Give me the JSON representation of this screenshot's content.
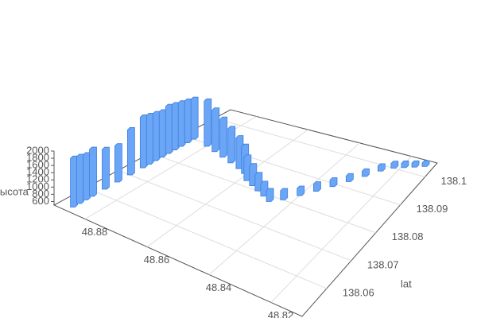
{
  "chart_data": {
    "type": "bar3D",
    "color": "#6aa6f5",
    "edge_color": "#3b7de0",
    "y_axis_name": "lat",
    "z_axis_name": "высота",
    "xlim": [
      48.81,
      48.89
    ],
    "ylim": [
      138.05,
      138.105
    ],
    "zlim": [
      500,
      2000
    ],
    "xticks": [
      48.82,
      48.84,
      48.86,
      48.88
    ],
    "yticks": [
      138.06,
      138.07,
      138.08,
      138.09,
      138.1
    ],
    "zticks": [
      600,
      800,
      1000,
      1200,
      1400,
      1600,
      1800,
      2000
    ],
    "grid": true,
    "x": [
      48.886,
      48.886,
      48.886,
      48.886,
      48.886,
      48.886,
      48.886,
      48.886,
      48.886,
      48.886,
      48.886,
      48.886,
      48.886,
      48.886,
      48.886,
      48.886,
      48.88,
      48.876,
      48.872,
      48.868,
      48.864,
      48.861,
      48.858,
      48.855,
      48.852,
      48.849,
      48.846,
      48.843,
      48.84,
      48.837,
      48.834,
      48.831,
      48.828,
      48.825,
      48.822,
      48.819,
      48.816,
      48.813
    ],
    "y": [
      138.052,
      138.054,
      138.056,
      138.058,
      138.062,
      138.066,
      138.07,
      138.074,
      138.076,
      138.078,
      138.08,
      138.082,
      138.084,
      138.086,
      138.088,
      138.09,
      138.089,
      138.088,
      138.087,
      138.086,
      138.085,
      138.084,
      138.082,
      138.081,
      138.08,
      138.079,
      138.078,
      138.08,
      138.083,
      138.086,
      138.089,
      138.092,
      138.095,
      138.098,
      138.1,
      138.101,
      138.102,
      138.103
    ],
    "z": [
      1850,
      1800,
      1750,
      1800,
      1600,
      1500,
      1750,
      1900,
      1850,
      1800,
      1750,
      1800,
      1750,
      1700,
      1650,
      1600,
      1750,
      1650,
      1550,
      1450,
      1350,
      1250,
      1150,
      1050,
      950,
      850,
      800,
      750,
      700,
      700,
      680,
      660,
      650,
      640,
      630,
      620,
      610,
      600
    ]
  }
}
